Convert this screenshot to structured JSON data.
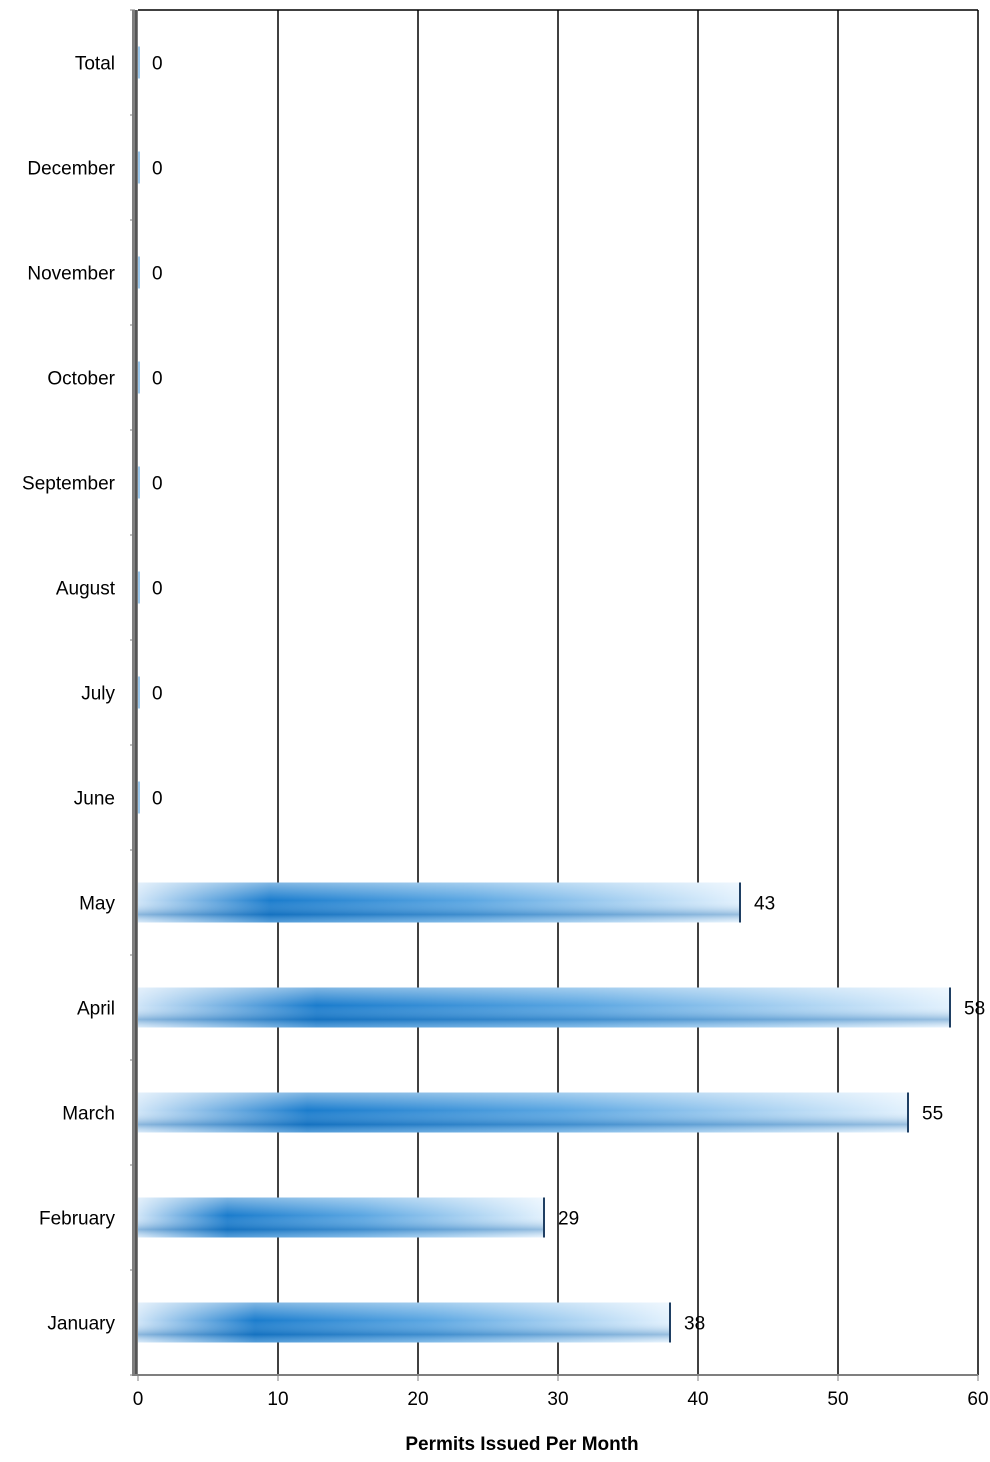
{
  "chart_data": {
    "type": "bar",
    "orientation": "horizontal",
    "categories": [
      "Total",
      "December",
      "November",
      "October",
      "September",
      "August",
      "July",
      "June",
      "May",
      "April",
      "March",
      "February",
      "January"
    ],
    "values": [
      0,
      0,
      0,
      0,
      0,
      0,
      0,
      0,
      43,
      58,
      55,
      29,
      38
    ],
    "data_labels": [
      "0",
      "0",
      "0",
      "0",
      "0",
      "0",
      "0",
      "0",
      "43",
      "58",
      "55",
      "29",
      "38"
    ],
    "xlabel": "Permits Issued Per Month",
    "ylabel": "",
    "xlim": [
      0,
      60
    ],
    "x_ticks": [
      0,
      10,
      20,
      30,
      40,
      50,
      60
    ],
    "x_tick_labels": [
      "0",
      "10",
      "20",
      "30",
      "40",
      "50",
      "60"
    ],
    "grid": "vertical",
    "legend": "none",
    "colors": {
      "bar_dark": "#0a6fc4",
      "bar_light": "#d8ecfc",
      "bar_edge": "#1f3f63",
      "grid": "#000000",
      "axis": "#7f7f7f",
      "background": "#ffffff"
    }
  }
}
